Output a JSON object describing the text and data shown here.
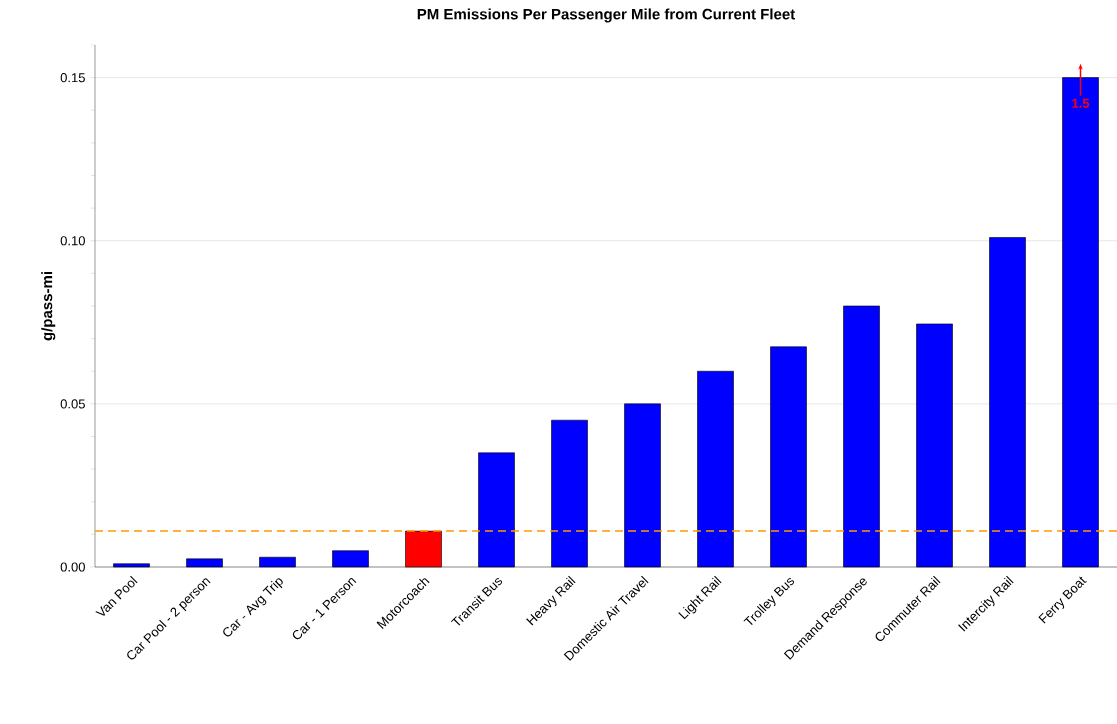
{
  "chart_data": {
    "type": "bar",
    "title": "PM Emissions Per Passenger Mile from Current Fleet",
    "ylabel": "g/pass-mi",
    "categories": [
      "Van Pool",
      "Car Pool - 2 person",
      "Car - Avg Trip",
      "Car - 1 Person",
      "Motorcoach",
      "Transit Bus",
      "Heavy Rail",
      "Domestic Air Travel",
      "Light Rail",
      "Trolley Bus",
      "Demand Response",
      "Commuter Rail",
      "Intercity Rail",
      "Ferry Boat"
    ],
    "values": [
      0.001,
      0.0025,
      0.003,
      0.005,
      0.011,
      0.035,
      0.045,
      0.05,
      0.06,
      0.0675,
      0.08,
      0.0745,
      0.101,
      0.15
    ],
    "colors": [
      "#0000ff",
      "#0000ff",
      "#0000ff",
      "#0000ff",
      "#ff0000",
      "#0000ff",
      "#0000ff",
      "#0000ff",
      "#0000ff",
      "#0000ff",
      "#0000ff",
      "#0000ff",
      "#0000ff",
      "#0000ff"
    ],
    "ylim": [
      0,
      0.16
    ],
    "yticks": [
      {
        "value": 0,
        "label": "0.00"
      },
      {
        "value": 0.01,
        "label": null
      },
      {
        "value": 0.02,
        "label": null
      },
      {
        "value": 0.03,
        "label": null
      },
      {
        "value": 0.04,
        "label": null
      },
      {
        "value": 0.05,
        "label": "0.05"
      },
      {
        "value": 0.06,
        "label": null
      },
      {
        "value": 0.07,
        "label": null
      },
      {
        "value": 0.08,
        "label": null
      },
      {
        "value": 0.09,
        "label": null
      },
      {
        "value": 0.1,
        "label": "0.10"
      },
      {
        "value": 0.11,
        "label": null
      },
      {
        "value": 0.12,
        "label": null
      },
      {
        "value": 0.13,
        "label": null
      },
      {
        "value": 0.14,
        "label": null
      },
      {
        "value": 0.15,
        "label": "0.15"
      },
      {
        "value": 0.16,
        "label": null
      }
    ],
    "grid": "y",
    "ref_lines": [
      {
        "axis": "y",
        "value": 0.011,
        "color": "#ff9900",
        "line_style": "dashed"
      }
    ],
    "annotations": [
      "1.5"
    ]
  }
}
